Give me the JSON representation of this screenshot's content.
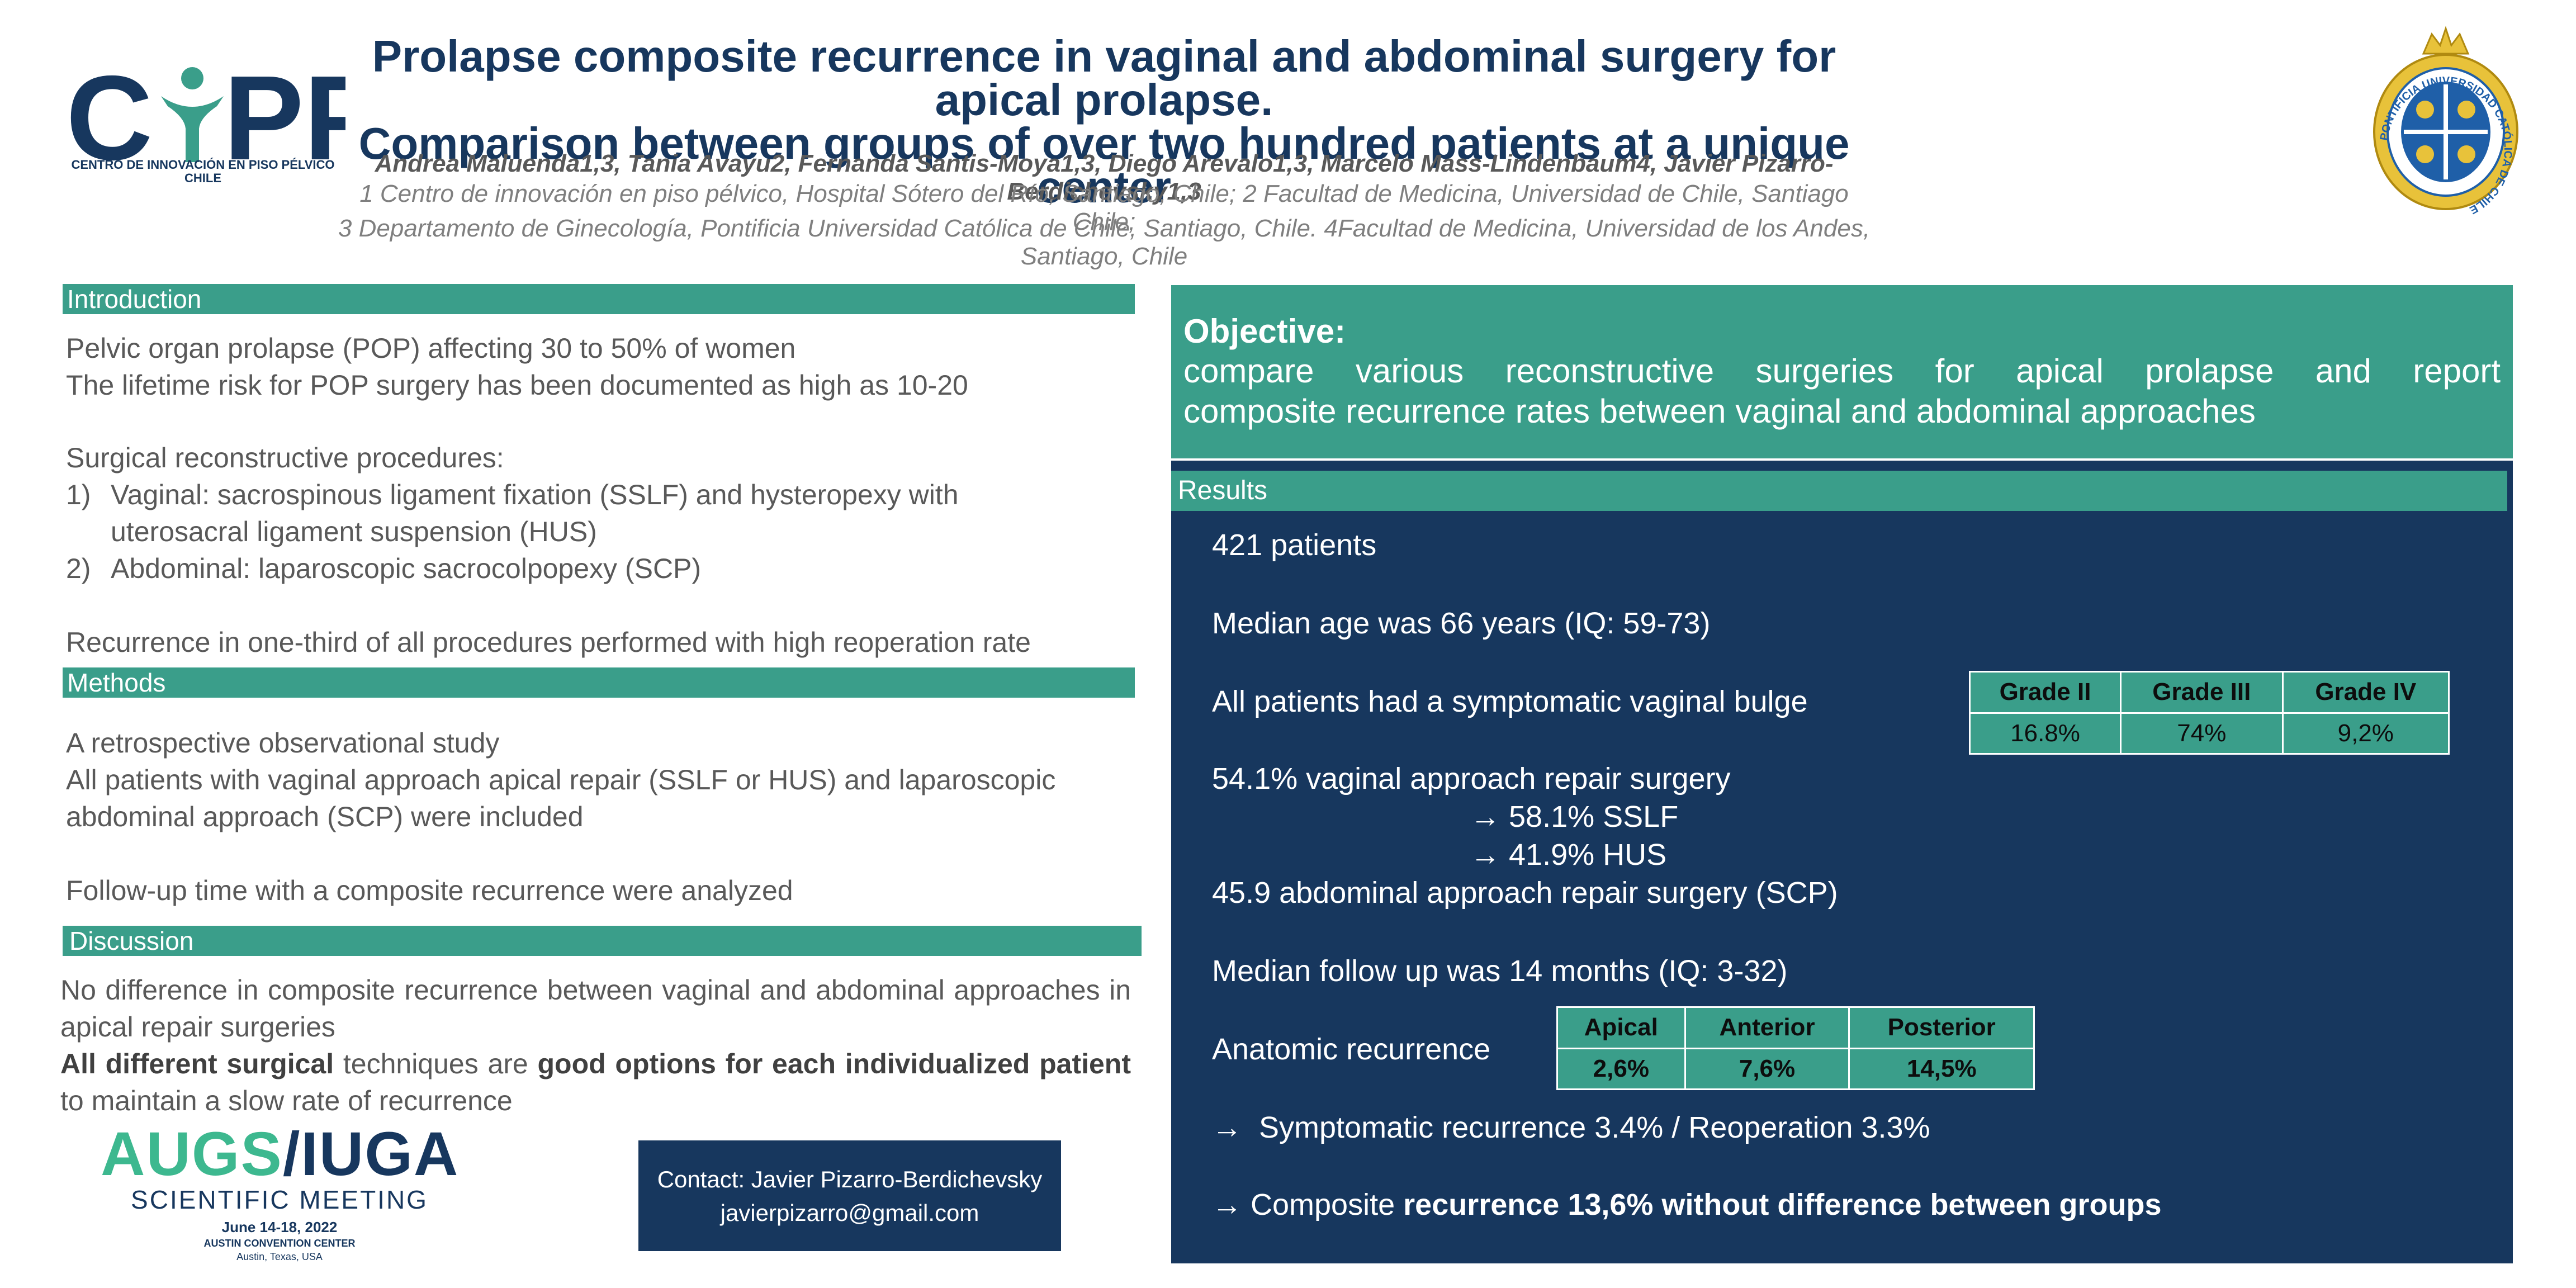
{
  "header": {
    "title_line1": "Prolapse composite recurrence in vaginal and abdominal surgery for apical prolapse.",
    "title_line2": "Comparison between groups of over two hundred patients at a unique center",
    "authors": "Andrea Maluenda1,3, Tania Avayu2, Fernanda Santis-Moya1,3, Diego Arevalo1,3, Marcelo Mass-Lindenbaum4,  Javier Pizarro-Berdichevsky1,3",
    "affiliation_line1": "1 Centro de innovación en piso pélvico, Hospital Sótero del Río, Santiago, Chile; 2 Facultad de Medicina, Universidad de Chile, Santiago Chile;",
    "affiliation_line2": "3 Departamento de Ginecología, Pontificia Universidad Católica de Chile, Santiago, Chile. 4Facultad de Medicina, Universidad de los Andes, Santiago, Chile"
  },
  "logo_cipp": {
    "wordmark": "CiPP",
    "subtitle_line1": "CENTRO DE INNOVACIÓN EN PISO PÉLVICO",
    "subtitle_line2": "CHILE"
  },
  "seal": {
    "text": "PONTIFICIA UNIVERSIDAD CATÓLICA DE CHILE"
  },
  "introduction": {
    "heading": "Introduction",
    "line1": "Pelvic organ prolapse (POP) affecting 30 to 50% of women",
    "line2": "The lifetime risk for POP surgery has been documented as high as 10-20",
    "line3": "Surgical reconstructive procedures:",
    "item1_num": "1)",
    "item1_text": "Vaginal: sacrospinous ligament fixation (SSLF) and hysteropexy with uterosacral ligament suspension (HUS)",
    "item2_num": "2)",
    "item2_text": "Abdominal: laparoscopic  sacrocolpopexy (SCP)",
    "line4": "Recurrence in one-third of all procedures performed with high reoperation rate"
  },
  "methods": {
    "heading": "Methods",
    "line1": "A retrospective observational study",
    "line2": "All patients with vaginal approach apical repair (SSLF or HUS) and laparoscopic abdominal approach (SCP) were included",
    "line3": "Follow-up time with a composite recurrence were analyzed"
  },
  "discussion": {
    "heading": "Discussion",
    "line1": "No difference in composite recurrence between vaginal and abdominal approaches in apical repair surgeries",
    "b1": "All different surgical",
    "t1": " techniques are ",
    "b2": "good options for each individualized patient",
    "t2": " to maintain a slow rate of recurrence"
  },
  "augs": {
    "brand_left": "AUGS",
    "slash": "/",
    "brand_right": "IUGA",
    "meeting": "SCIENTIFIC MEETING",
    "dates": "June 14-18, 2022",
    "venue": "AUSTIN CONVENTION CENTER",
    "city": "Austin, Texas, USA"
  },
  "contact": {
    "line1": "Contact: Javier Pizarro-Berdichevsky",
    "line2": "javierpizarro@gmail.com"
  },
  "objective": {
    "heading": "Objective:",
    "line1": "compare various reconstructive surgeries for apical prolapse and report",
    "line2": "composite recurrence rates between vaginal and abdominal approaches"
  },
  "results": {
    "heading": "Results",
    "patients": "421 patients",
    "age": "Median age was 66 years (IQ: 59-73)",
    "bulge": "All patients had a symptomatic vaginal bulge",
    "vaginal": "54.1% vaginal approach repair surgery",
    "sslf": "58.1% SSLF",
    "hus": "41.9% HUS",
    "abdominal": "45.9 abdominal approach repair surgery (SCP)",
    "followup": "Median follow up was 14 months (IQ: 3-32)",
    "anatomic_label": "Anatomic recurrence",
    "symptomatic": "Symptomatic recurrence 3.4% / Reoperation 3.3%",
    "composite_pre": "Composite ",
    "composite_bold": "recurrence 13,6% without difference between groups",
    "arrow": "→",
    "grade_table": {
      "headers": [
        "Grade II",
        "Grade III",
        "Grade IV"
      ],
      "values": [
        "16.8%",
        "74%",
        "9,2%"
      ]
    },
    "anatomic_table": {
      "headers": [
        "Apical",
        "Anterior",
        "Posterior"
      ],
      "values": [
        "2,6%",
        "7,6%",
        "14,5%"
      ]
    }
  },
  "colors": {
    "teal": "#3a9e8a",
    "navy": "#17375e",
    "augs_green": "#3db88f"
  }
}
